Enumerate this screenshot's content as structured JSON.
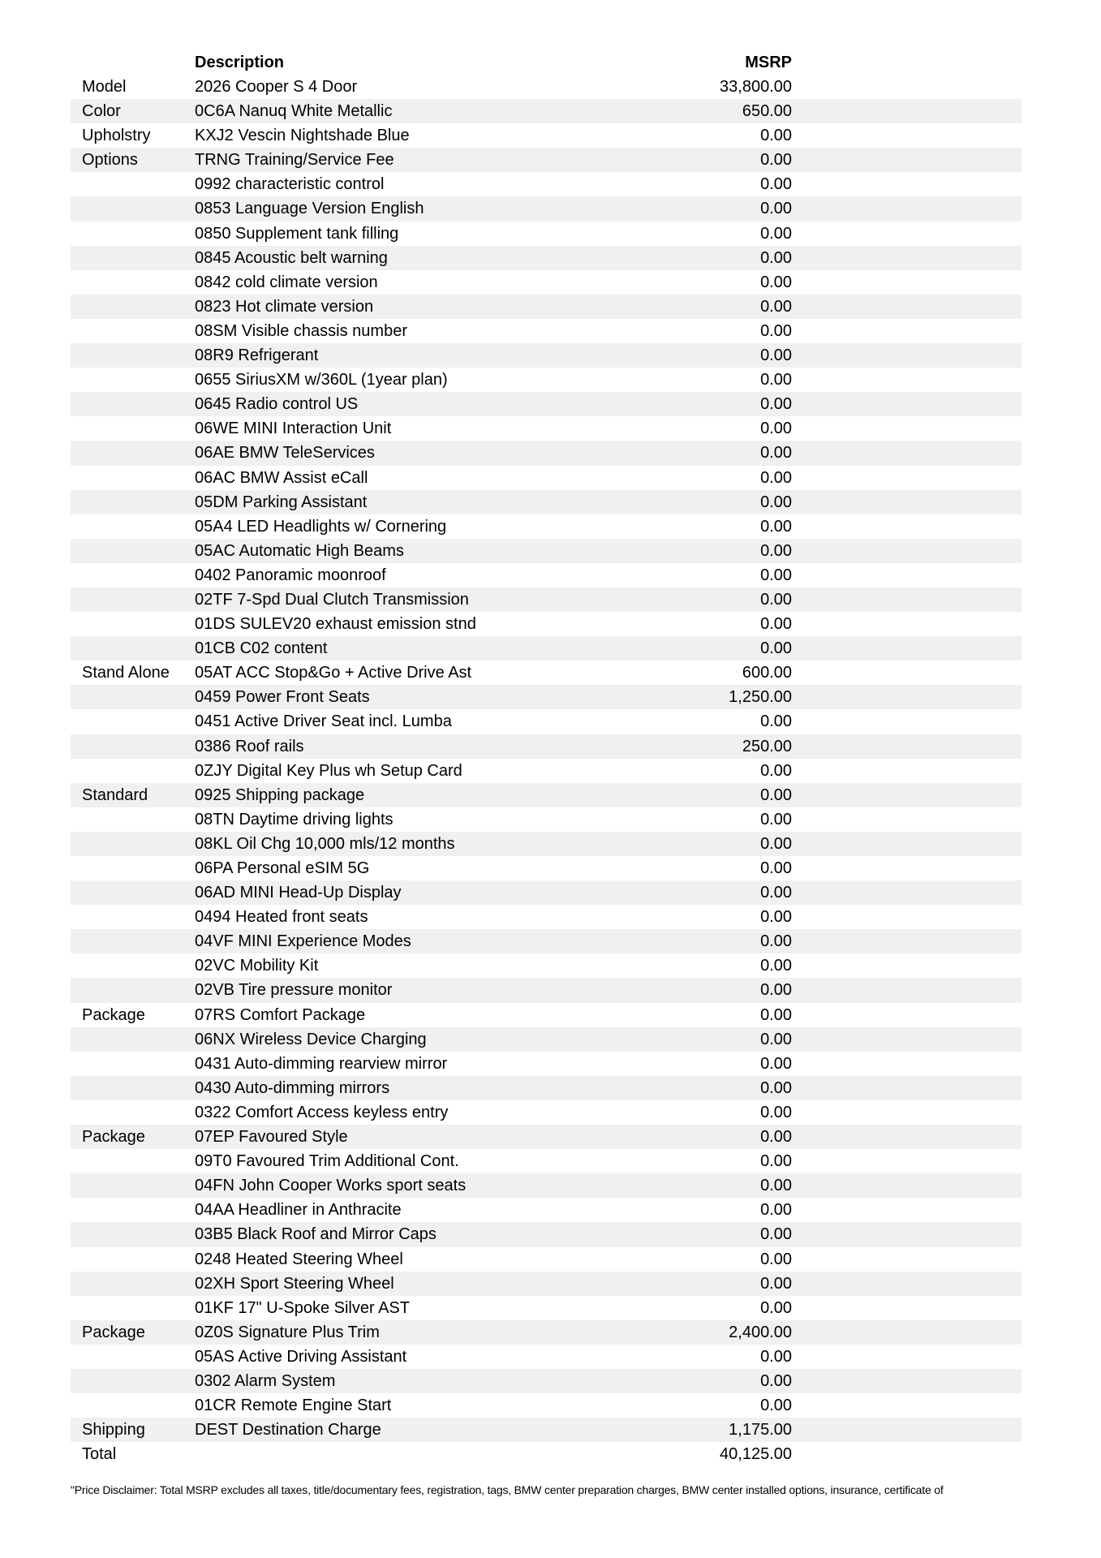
{
  "page": {
    "colors": {
      "page_bg": "#ffffff",
      "text": "#000000",
      "stripe": "#eff1f0"
    },
    "columns": {
      "description": "Description",
      "msrp": "MSRP"
    },
    "rows": [
      {
        "category": "Model",
        "description": "2026 Cooper S 4 Door",
        "msrp": "33,800.00"
      },
      {
        "category": "Color",
        "description": "0C6A Nanuq White Metallic",
        "msrp": "650.00"
      },
      {
        "category": "Upholstry",
        "description": "KXJ2 Vescin Nightshade Blue",
        "msrp": "0.00"
      },
      {
        "category": "Options",
        "description": "TRNG Training/Service Fee",
        "msrp": "0.00"
      },
      {
        "category": "",
        "description": "0992 characteristic control",
        "msrp": "0.00"
      },
      {
        "category": "",
        "description": "0853 Language Version English",
        "msrp": "0.00"
      },
      {
        "category": "",
        "description": "0850 Supplement tank filling",
        "msrp": "0.00"
      },
      {
        "category": "",
        "description": "0845 Acoustic belt warning",
        "msrp": "0.00"
      },
      {
        "category": "",
        "description": "0842 cold climate version",
        "msrp": "0.00"
      },
      {
        "category": "",
        "description": "0823 Hot climate version",
        "msrp": "0.00"
      },
      {
        "category": "",
        "description": "08SM Visible chassis number",
        "msrp": "0.00"
      },
      {
        "category": "",
        "description": "08R9 Refrigerant",
        "msrp": "0.00"
      },
      {
        "category": "",
        "description": "0655 SiriusXM w/360L (1year plan)",
        "msrp": "0.00"
      },
      {
        "category": "",
        "description": "0645 Radio control US",
        "msrp": "0.00"
      },
      {
        "category": "",
        "description": "06WE MINI Interaction Unit",
        "msrp": "0.00"
      },
      {
        "category": "",
        "description": "06AE BMW TeleServices",
        "msrp": "0.00"
      },
      {
        "category": "",
        "description": "06AC BMW Assist eCall",
        "msrp": "0.00"
      },
      {
        "category": "",
        "description": "05DM Parking Assistant",
        "msrp": "0.00"
      },
      {
        "category": "",
        "description": "05A4 LED Headlights w/ Cornering",
        "msrp": "0.00"
      },
      {
        "category": "",
        "description": "05AC Automatic High Beams",
        "msrp": "0.00"
      },
      {
        "category": "",
        "description": "0402 Panoramic moonroof",
        "msrp": "0.00"
      },
      {
        "category": "",
        "description": "02TF 7-Spd Dual Clutch Transmission",
        "msrp": "0.00"
      },
      {
        "category": "",
        "description": "01DS SULEV20 exhaust emission stnd",
        "msrp": "0.00"
      },
      {
        "category": "",
        "description": "01CB C02 content",
        "msrp": "0.00"
      },
      {
        "category": "Stand Alone",
        "description": "05AT ACC Stop&Go + Active Drive Ast",
        "msrp": "600.00"
      },
      {
        "category": "",
        "description": "0459 Power Front Seats",
        "msrp": "1,250.00"
      },
      {
        "category": "",
        "description": "0451 Active Driver Seat incl. Lumba",
        "msrp": "0.00"
      },
      {
        "category": "",
        "description": "0386 Roof rails",
        "msrp": "250.00"
      },
      {
        "category": "",
        "description": "0ZJY Digital Key Plus wh Setup Card",
        "msrp": "0.00"
      },
      {
        "category": "Standard",
        "description": "0925 Shipping package",
        "msrp": "0.00"
      },
      {
        "category": "",
        "description": "08TN Daytime driving lights",
        "msrp": "0.00"
      },
      {
        "category": "",
        "description": "08KL Oil Chg 10,000 mls/12 months",
        "msrp": "0.00"
      },
      {
        "category": "",
        "description": "06PA Personal eSIM 5G",
        "msrp": "0.00"
      },
      {
        "category": "",
        "description": "06AD MINI Head-Up Display",
        "msrp": "0.00"
      },
      {
        "category": "",
        "description": "0494 Heated front seats",
        "msrp": "0.00"
      },
      {
        "category": "",
        "description": "04VF MINI Experience Modes",
        "msrp": "0.00"
      },
      {
        "category": "",
        "description": "02VC Mobility Kit",
        "msrp": "0.00"
      },
      {
        "category": "",
        "description": "02VB Tire pressure monitor",
        "msrp": "0.00"
      },
      {
        "category": "Package",
        "description": "07RS Comfort Package",
        "msrp": "0.00"
      },
      {
        "category": "",
        "description": "06NX Wireless Device Charging",
        "msrp": "0.00"
      },
      {
        "category": "",
        "description": "0431 Auto-dimming rearview mirror",
        "msrp": "0.00"
      },
      {
        "category": "",
        "description": "0430 Auto-dimming mirrors",
        "msrp": "0.00"
      },
      {
        "category": "",
        "description": "0322 Comfort Access keyless entry",
        "msrp": "0.00"
      },
      {
        "category": "Package",
        "description": "07EP Favoured Style",
        "msrp": "0.00"
      },
      {
        "category": "",
        "description": "09T0 Favoured Trim Additional Cont.",
        "msrp": "0.00"
      },
      {
        "category": "",
        "description": "04FN John Cooper Works sport seats",
        "msrp": "0.00"
      },
      {
        "category": "",
        "description": "04AA Headliner in Anthracite",
        "msrp": "0.00"
      },
      {
        "category": "",
        "description": "03B5 Black Roof and Mirror Caps",
        "msrp": "0.00"
      },
      {
        "category": "",
        "description": "0248 Heated Steering Wheel",
        "msrp": "0.00"
      },
      {
        "category": "",
        "description": "02XH Sport Steering Wheel",
        "msrp": "0.00"
      },
      {
        "category": "",
        "description": "01KF 17\" U-Spoke Silver AST",
        "msrp": "0.00"
      },
      {
        "category": "Package",
        "description": "0Z0S Signature Plus Trim",
        "msrp": "2,400.00"
      },
      {
        "category": "",
        "description": "05AS Active Driving Assistant",
        "msrp": "0.00"
      },
      {
        "category": "",
        "description": "0302 Alarm System",
        "msrp": "0.00"
      },
      {
        "category": "",
        "description": "01CR Remote Engine Start",
        "msrp": "0.00"
      },
      {
        "category": "Shipping",
        "description": "DEST Destination Charge",
        "msrp": "1,175.00"
      },
      {
        "category": "Total",
        "description": "",
        "msrp": "40,125.00"
      }
    ],
    "disclaimer": "\"Price Disclaimer: Total MSRP excludes all taxes, title/documentary fees, registration, tags, BMW center preparation charges, BMW center installed options, insurance, certificate of"
  }
}
